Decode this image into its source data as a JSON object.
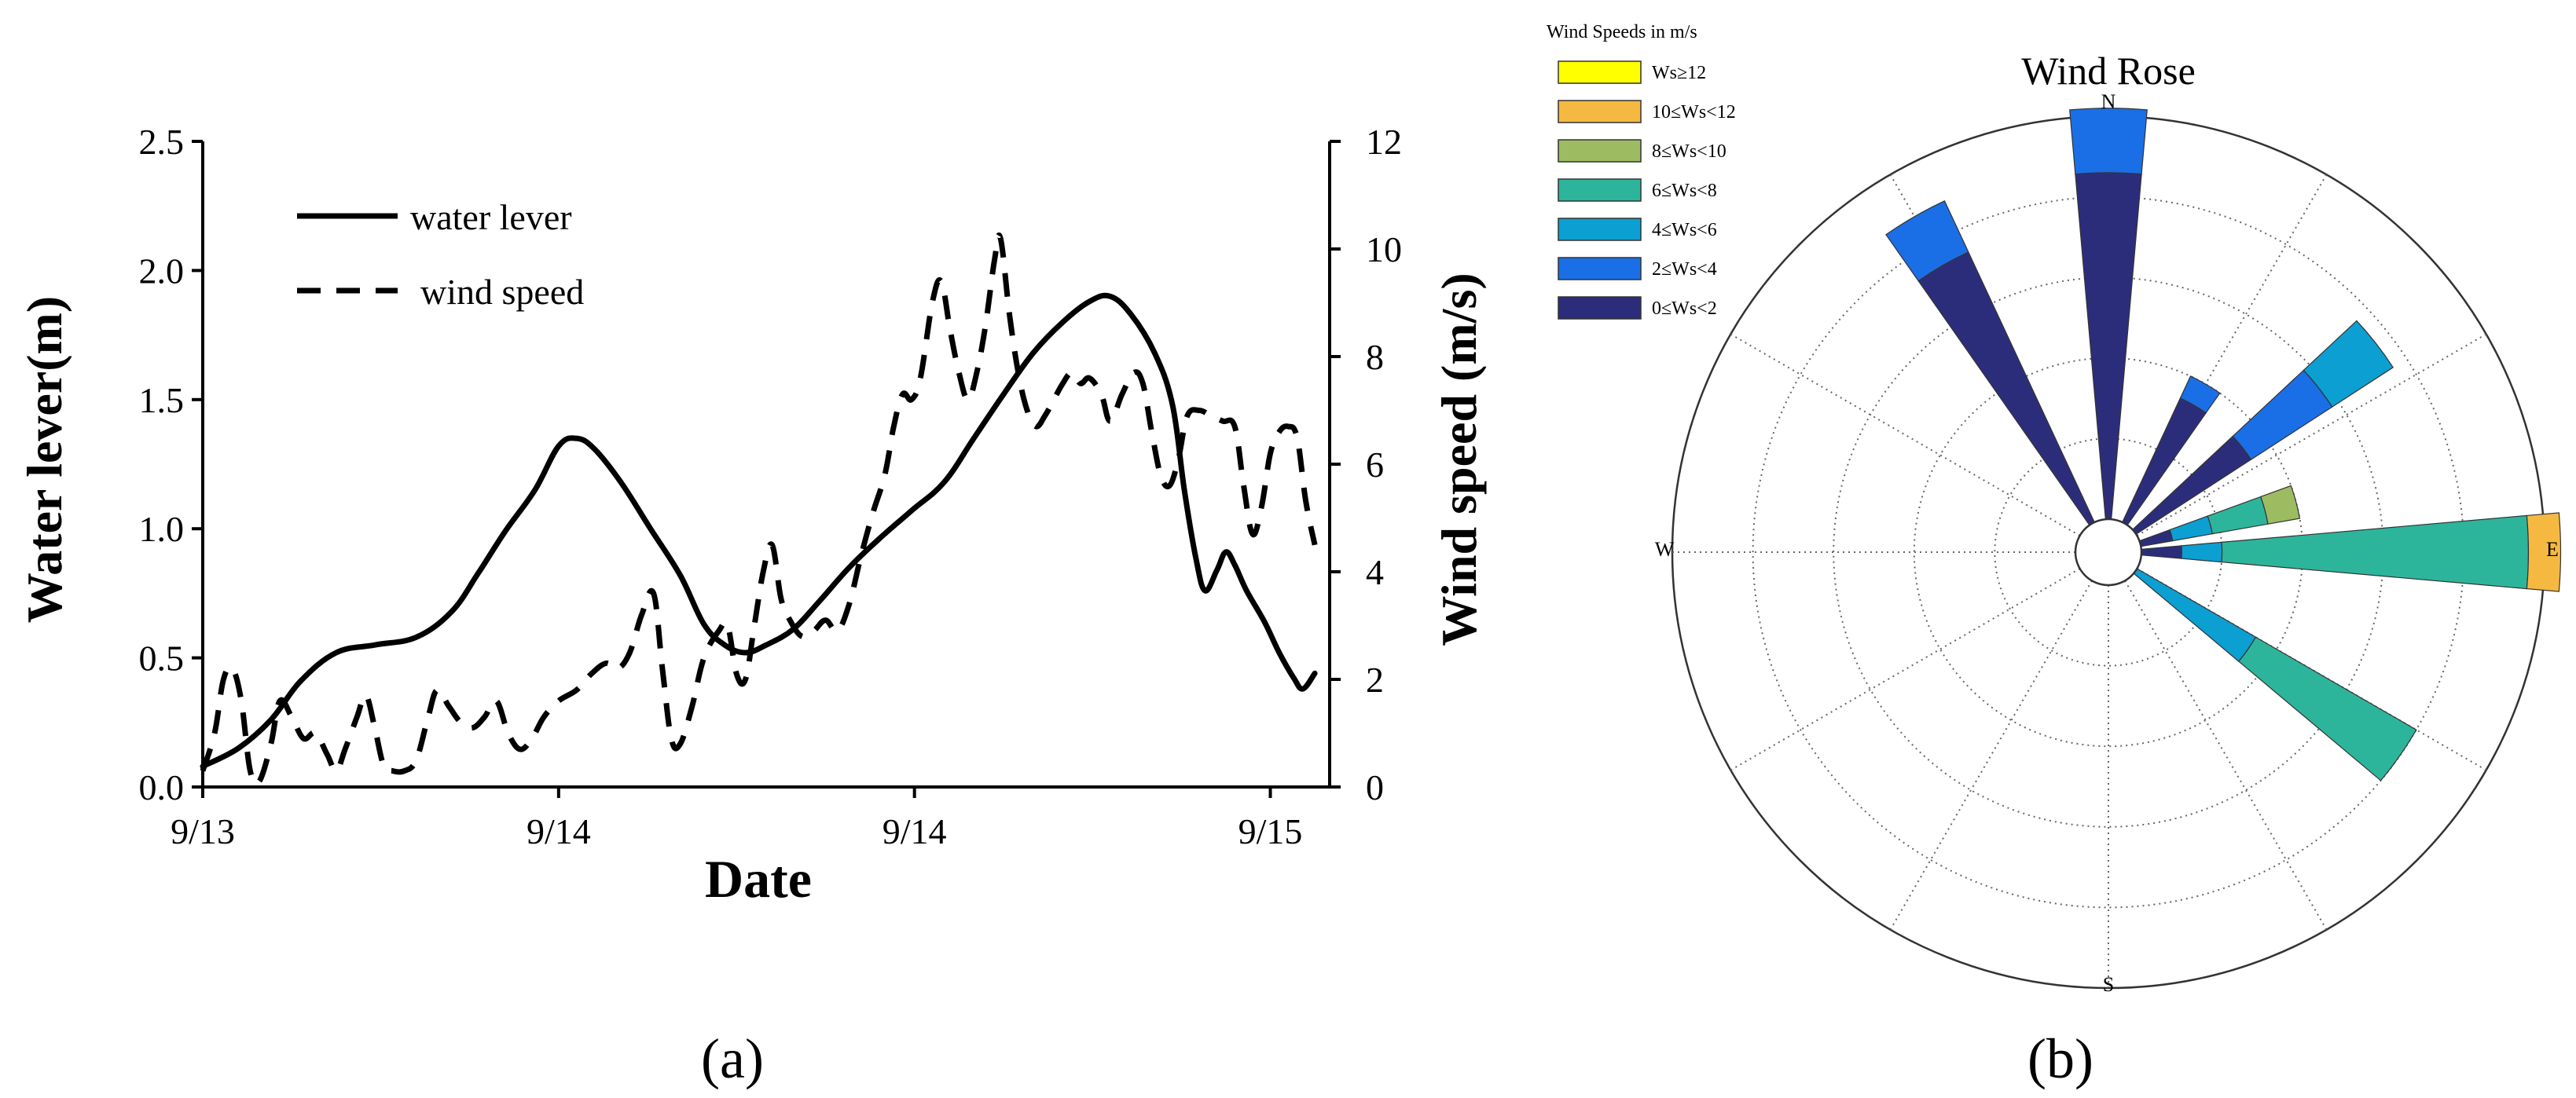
{
  "panel_labels": {
    "a": "(a)",
    "b": "(b)"
  },
  "chart_data": [
    {
      "type": "line",
      "panel": "(a)",
      "title": "",
      "xlabel": "Date",
      "ylabel_left": "Water lever(m)",
      "ylabel_right": "Wind speed (m/s)",
      "x_tick_labels": [
        "9/13",
        "9/14",
        "9/14",
        "9/15"
      ],
      "x_tick_values": [
        0,
        12,
        24,
        36
      ],
      "xlim": [
        0,
        38
      ],
      "ylim_left": [
        0,
        2.5
      ],
      "y_left_ticks": [
        "0.0",
        "0.5",
        "1.0",
        "1.5",
        "2.0",
        "2.5"
      ],
      "ylim_right": [
        0,
        12
      ],
      "y_right_ticks": [
        "0",
        "2",
        "4",
        "6",
        "8",
        "10",
        "12"
      ],
      "legend": [
        "water lever",
        "wind speed"
      ],
      "series": [
        {
          "name": "water lever",
          "axis": "left",
          "style": "solid",
          "points": [
            [
              0,
              0.08
            ],
            [
              1.2,
              0.15
            ],
            [
              2.3,
              0.26
            ],
            [
              3.3,
              0.41
            ],
            [
              4.5,
              0.52
            ],
            [
              5.8,
              0.55
            ],
            [
              7.2,
              0.58
            ],
            [
              8.4,
              0.68
            ],
            [
              9.3,
              0.83
            ],
            [
              10.2,
              0.99
            ],
            [
              11.2,
              1.15
            ],
            [
              12,
              1.32
            ],
            [
              12.6,
              1.35
            ],
            [
              13.2,
              1.31
            ],
            [
              14.1,
              1.18
            ],
            [
              15.1,
              1.0
            ],
            [
              16.1,
              0.82
            ],
            [
              16.9,
              0.63
            ],
            [
              17.6,
              0.55
            ],
            [
              18.3,
              0.52
            ],
            [
              19.0,
              0.55
            ],
            [
              19.9,
              0.61
            ],
            [
              20.8,
              0.72
            ],
            [
              21.8,
              0.85
            ],
            [
              22.8,
              0.96
            ],
            [
              23.9,
              1.07
            ],
            [
              25.0,
              1.18
            ],
            [
              26.0,
              1.35
            ],
            [
              27.0,
              1.52
            ],
            [
              28.0,
              1.68
            ],
            [
              29.0,
              1.8
            ],
            [
              29.9,
              1.88
            ],
            [
              30.6,
              1.9
            ],
            [
              31.3,
              1.83
            ],
            [
              32.1,
              1.68
            ],
            [
              32.7,
              1.48
            ],
            [
              33.1,
              1.15
            ],
            [
              33.5,
              0.88
            ],
            [
              33.8,
              0.76
            ],
            [
              34.2,
              0.84
            ],
            [
              34.5,
              0.91
            ],
            [
              34.8,
              0.86
            ],
            [
              35.2,
              0.76
            ],
            [
              35.8,
              0.64
            ],
            [
              36.3,
              0.52
            ],
            [
              36.8,
              0.42
            ],
            [
              37.1,
              0.38
            ],
            [
              37.5,
              0.44
            ]
          ]
        },
        {
          "name": "wind speed",
          "axis": "right",
          "style": "dashed",
          "points": [
            [
              0,
              0.3
            ],
            [
              0.4,
              1.0
            ],
            [
              0.7,
              2.0
            ],
            [
              1.0,
              2.2
            ],
            [
              1.3,
              1.6
            ],
            [
              1.6,
              0.3
            ],
            [
              1.9,
              0.1
            ],
            [
              2.3,
              0.8
            ],
            [
              2.6,
              1.6
            ],
            [
              3.0,
              1.3
            ],
            [
              3.4,
              0.9
            ],
            [
              3.8,
              1.0
            ],
            [
              4.2,
              0.6
            ],
            [
              4.5,
              0.3
            ],
            [
              4.8,
              0.7
            ],
            [
              5.2,
              1.3
            ],
            [
              5.5,
              1.7
            ],
            [
              5.8,
              1.1
            ],
            [
              6.1,
              0.4
            ],
            [
              6.4,
              0.3
            ],
            [
              6.8,
              0.3
            ],
            [
              7.2,
              0.5
            ],
            [
              7.6,
              1.3
            ],
            [
              7.9,
              1.8
            ],
            [
              8.3,
              1.5
            ],
            [
              8.7,
              1.2
            ],
            [
              9.1,
              1.1
            ],
            [
              9.5,
              1.3
            ],
            [
              9.9,
              1.6
            ],
            [
              10.3,
              1.0
            ],
            [
              10.7,
              0.7
            ],
            [
              11.1,
              0.9
            ],
            [
              11.5,
              1.3
            ],
            [
              12.0,
              1.6
            ],
            [
              12.6,
              1.8
            ],
            [
              13.1,
              2.1
            ],
            [
              13.6,
              2.3
            ],
            [
              14.0,
              2.2
            ],
            [
              14.4,
              2.5
            ],
            [
              14.8,
              3.2
            ],
            [
              15.2,
              3.6
            ],
            [
              15.5,
              2.2
            ],
            [
              15.8,
              0.9
            ],
            [
              16.1,
              0.8
            ],
            [
              16.5,
              1.5
            ],
            [
              16.9,
              2.4
            ],
            [
              17.4,
              2.9
            ],
            [
              17.7,
              3.0
            ],
            [
              18.0,
              2.1
            ],
            [
              18.3,
              2.0
            ],
            [
              18.6,
              3.0
            ],
            [
              18.9,
              4.0
            ],
            [
              19.2,
              4.5
            ],
            [
              19.5,
              3.5
            ],
            [
              19.8,
              3.1
            ],
            [
              20.2,
              2.8
            ],
            [
              20.6,
              2.9
            ],
            [
              21.0,
              3.1
            ],
            [
              21.4,
              2.9
            ],
            [
              21.8,
              3.4
            ],
            [
              22.2,
              4.3
            ],
            [
              22.6,
              5.1
            ],
            [
              23.0,
              5.8
            ],
            [
              23.3,
              6.7
            ],
            [
              23.6,
              7.3
            ],
            [
              23.9,
              7.2
            ],
            [
              24.2,
              7.6
            ],
            [
              24.6,
              9.0
            ],
            [
              24.9,
              9.4
            ],
            [
              25.2,
              8.5
            ],
            [
              25.5,
              7.7
            ],
            [
              25.8,
              7.2
            ],
            [
              26.1,
              7.7
            ],
            [
              26.4,
              8.6
            ],
            [
              26.7,
              9.8
            ],
            [
              26.9,
              10.2
            ],
            [
              27.2,
              8.8
            ],
            [
              27.5,
              7.7
            ],
            [
              27.8,
              7.0
            ],
            [
              28.1,
              6.7
            ],
            [
              28.4,
              6.9
            ],
            [
              28.7,
              7.2
            ],
            [
              29.0,
              7.5
            ],
            [
              29.3,
              7.7
            ],
            [
              29.6,
              7.5
            ],
            [
              29.9,
              7.6
            ],
            [
              30.3,
              7.3
            ],
            [
              30.6,
              6.8
            ],
            [
              31.0,
              7.3
            ],
            [
              31.4,
              7.7
            ],
            [
              31.7,
              7.5
            ],
            [
              32.0,
              6.6
            ],
            [
              32.3,
              5.8
            ],
            [
              32.6,
              5.6
            ],
            [
              32.9,
              6.1
            ],
            [
              33.2,
              6.9
            ],
            [
              33.6,
              7.0
            ],
            [
              34.0,
              6.9
            ],
            [
              34.4,
              6.8
            ],
            [
              34.8,
              6.7
            ],
            [
              35.1,
              5.6
            ],
            [
              35.4,
              4.7
            ],
            [
              35.7,
              5.2
            ],
            [
              36.0,
              6.2
            ],
            [
              36.3,
              6.6
            ],
            [
              36.6,
              6.7
            ],
            [
              36.9,
              6.5
            ],
            [
              37.2,
              5.3
            ],
            [
              37.5,
              4.5
            ]
          ]
        }
      ]
    },
    {
      "type": "wind_rose",
      "panel": "(b)",
      "title": "Wind Rose",
      "legend_title": "Wind Speeds in m/s",
      "directions": [
        "N",
        "E",
        "S",
        "W"
      ],
      "bins": [
        {
          "label": "Ws≥12",
          "color": "#ffff00"
        },
        {
          "label": "10≤Ws<12",
          "color": "#f5b942"
        },
        {
          "label": "8≤Ws<10",
          "color": "#9dbb61"
        },
        {
          "label": "6≤Ws<8",
          "color": "#2db59b"
        },
        {
          "label": "4≤Ws<6",
          "color": "#0c9fd1"
        },
        {
          "label": "2≤Ws<4",
          "color": "#1a6fe6"
        },
        {
          "label": "0≤Ws<2",
          "color": "#2c2d7a"
        }
      ],
      "rings": 5,
      "max_radius_units": 5,
      "sectors": [
        {
          "direction_deg": 0,
          "segments": [
            {
              "bin": "0≤Ws<2",
              "from": 0,
              "to": 4.3
            },
            {
              "bin": "2≤Ws<4",
              "from": 4.3,
              "to": 5.1
            }
          ]
        },
        {
          "direction_deg": 330,
          "segments": [
            {
              "bin": "0≤Ws<2",
              "from": 0,
              "to": 3.7
            },
            {
              "bin": "2≤Ws<4",
              "from": 3.7,
              "to": 4.4
            }
          ]
        },
        {
          "direction_deg": 30,
          "segments": [
            {
              "bin": "0≤Ws<2",
              "from": 0,
              "to": 1.7
            },
            {
              "bin": "2≤Ws<4",
              "from": 1.7,
              "to": 2.0
            }
          ]
        },
        {
          "direction_deg": 52,
          "segments": [
            {
              "bin": "0≤Ws<2",
              "from": 0,
              "to": 1.7
            },
            {
              "bin": "2≤Ws<4",
              "from": 1.7,
              "to": 2.9
            },
            {
              "bin": "4≤Ws<6",
              "from": 2.9,
              "to": 3.8
            }
          ]
        },
        {
          "direction_deg": 75,
          "segments": [
            {
              "bin": "0≤Ws<2",
              "from": 0,
              "to": 0.4
            },
            {
              "bin": "4≤Ws<6",
              "from": 0.4,
              "to": 0.9
            },
            {
              "bin": "6≤Ws<8",
              "from": 0.9,
              "to": 1.6
            },
            {
              "bin": "8≤Ws<10",
              "from": 1.6,
              "to": 2.0
            }
          ]
        },
        {
          "direction_deg": 90,
          "segments": [
            {
              "bin": "0≤Ws<2",
              "from": 0,
              "to": 0.5
            },
            {
              "bin": "4≤Ws<6",
              "from": 0.5,
              "to": 1.0
            },
            {
              "bin": "6≤Ws<8",
              "from": 1.0,
              "to": 4.8
            },
            {
              "bin": "10≤Ws<12",
              "from": 4.8,
              "to": 5.2
            }
          ]
        },
        {
          "direction_deg": 125,
          "segments": [
            {
              "bin": "4≤Ws<6",
              "from": 0,
              "to": 1.7
            },
            {
              "bin": "6≤Ws<8",
              "from": 1.7,
              "to": 4.0
            }
          ]
        }
      ]
    }
  ]
}
